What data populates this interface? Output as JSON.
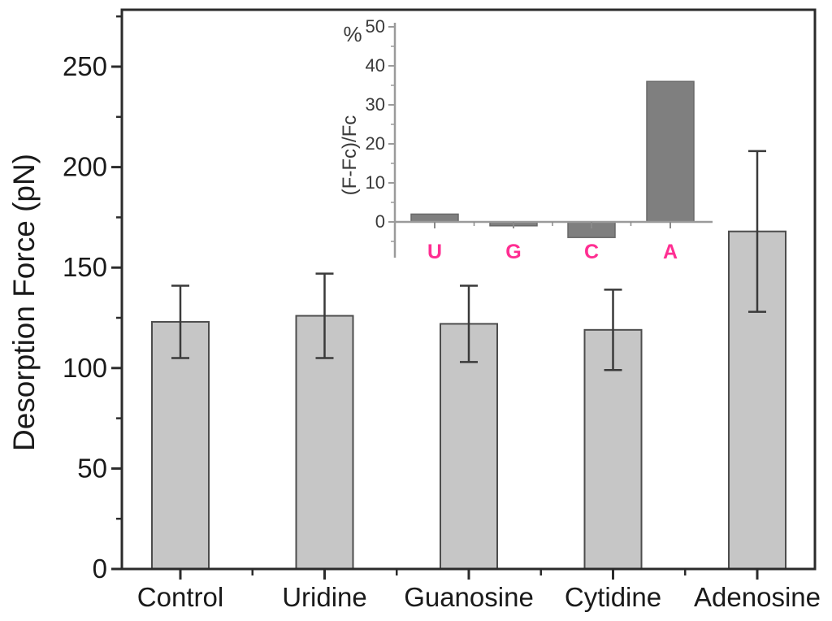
{
  "figure": {
    "background": "#ffffff",
    "description": "Bar chart of desorption force with inset of relative force change"
  },
  "chart_data": [
    {
      "type": "bar",
      "name": "main",
      "title": "",
      "xlabel": "",
      "ylabel": "Desorption Force (pN)",
      "categories": [
        "Control",
        "Uridine",
        "Guanosine",
        "Cytidine",
        "Adenosine"
      ],
      "values": [
        123,
        126,
        122,
        119,
        168
      ],
      "errors": [
        18,
        21,
        19,
        20,
        40
      ],
      "ylim": [
        0,
        278
      ],
      "yticks": [
        0,
        50,
        100,
        150,
        200,
        250
      ],
      "ytick_labels": [
        "0",
        "50",
        "100",
        "150",
        "200",
        "250"
      ],
      "minor_ytick_step": 25,
      "grid": "off",
      "legend": "none",
      "bar_fill": "#c6c6c6",
      "bar_border": "#4d4d4d",
      "error_color": "#3a3a3a",
      "axis_color": "#2b2b2b",
      "text_color": "#1a1a1a"
    },
    {
      "type": "bar",
      "name": "inset",
      "title": "",
      "xlabel": "",
      "ylabel_side": "(F-Fc)/Fc",
      "ylabel_top": "%",
      "categories": [
        "U",
        "G",
        "C",
        "A"
      ],
      "values": [
        2,
        -1,
        -4,
        36
      ],
      "ylim": [
        -9,
        50
      ],
      "yticks": [
        0,
        10,
        20,
        30,
        40,
        50
      ],
      "ytick_labels": [
        "0",
        "10",
        "20",
        "30",
        "40",
        "50"
      ],
      "minor_ytick_step": 5,
      "grid": "off",
      "legend": "none",
      "bar_fill": "#7f7f7f",
      "bar_border": "#696969",
      "axis_color": "#9a9a9a",
      "tick_label_color": "#3a3a3a",
      "category_color": "#ff2e92"
    }
  ]
}
